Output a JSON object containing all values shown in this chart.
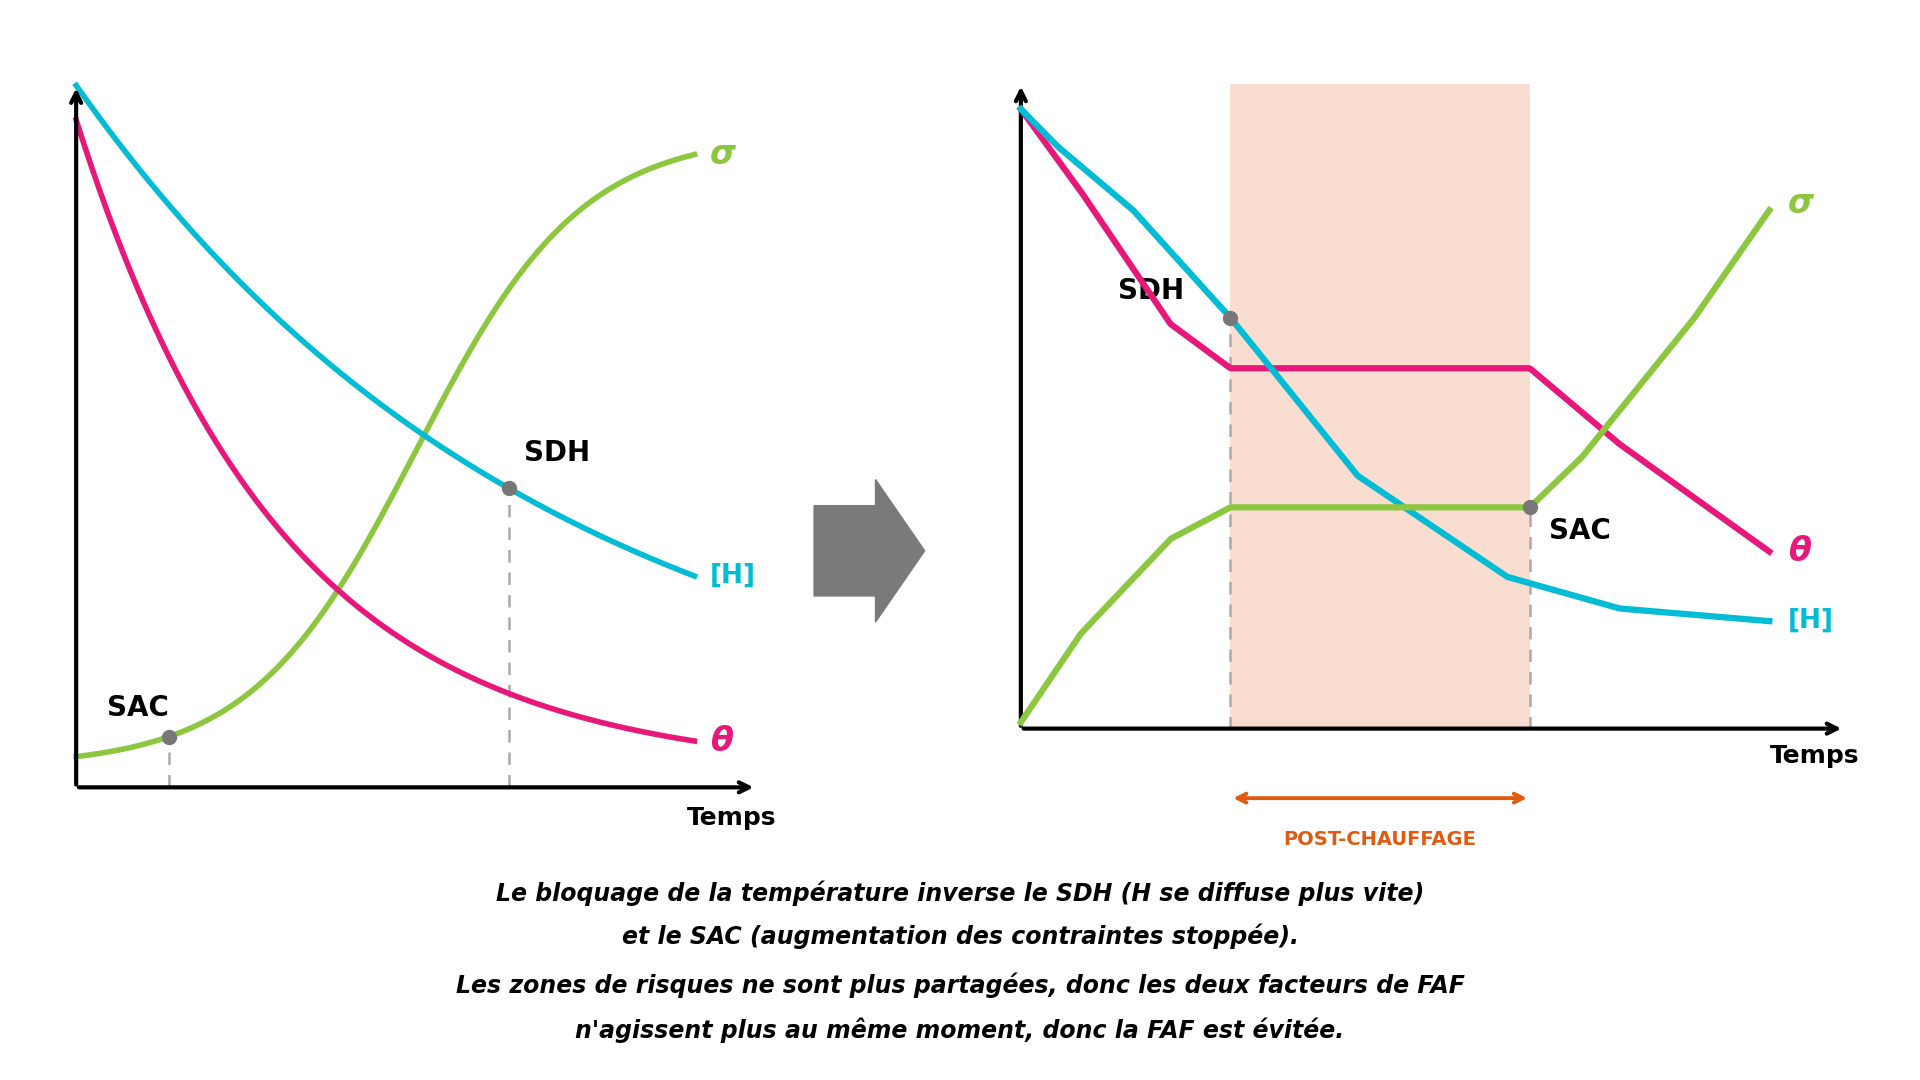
{
  "bg_color": "#ffffff",
  "sigma_color": "#8dc63f",
  "H_color": "#00bcd4",
  "theta_color": "#e8187a",
  "dashed_color": "#aaaaaa",
  "dot_color": "#777777",
  "post_chauffage_fill": "#f9ddd0",
  "post_chauffage_arrow": "#e05a10",
  "text_caption_line1": "Le bloquage de la température inverse le SDH (H se diffuse plus vite)",
  "text_caption_line2": "et le SAC (augmentation des contraintes stoppée).",
  "text_caption_line3": "Les zones de risques ne sont plus partagées, donc les deux facteurs de FAF",
  "text_caption_line4": "n'agissent plus au même moment, donc la FAF est évitée.",
  "xlabel": "Temps"
}
